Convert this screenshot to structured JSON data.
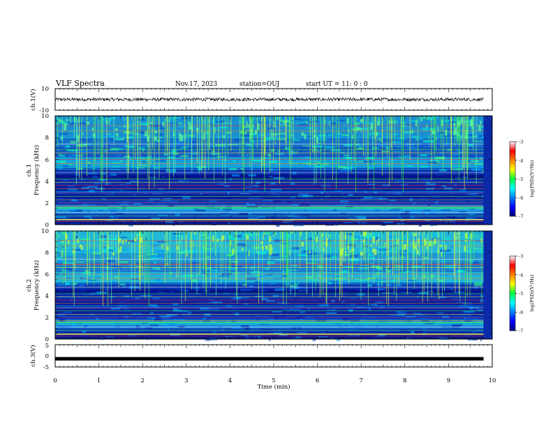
{
  "header": {
    "title": "VLF Spectra",
    "date": "Nov.17, 2023",
    "station": "station=OUJ",
    "start": "start  UT =   11: 0  : 0"
  },
  "colors": {
    "colormap": [
      "#00007a",
      "#0000ff",
      "#0080ff",
      "#00ffff",
      "#00ff40",
      "#ffff00",
      "#ff8000",
      "#ff0000",
      "#ffffff"
    ],
    "trace": "#000000"
  },
  "chart_data": [
    {
      "type": "line",
      "name": "ch1-waveform",
      "ylabel": "ch.1(V)",
      "ylim": [
        -10,
        10
      ],
      "yticks": [
        "10",
        "-10"
      ],
      "x_range_min": [
        0,
        9.8
      ],
      "level_V": 0,
      "amplitude_V": 1.5
    },
    {
      "type": "heatmap",
      "name": "ch1-spectrogram",
      "ylabel": [
        "ch.1",
        "Frequency  (kHz)"
      ],
      "ylim_kHz": [
        0,
        10
      ],
      "yticks": [
        "0",
        "2",
        "4",
        "6",
        "8",
        "10"
      ],
      "x_range_min": [
        0,
        9.8
      ],
      "colorbar": {
        "label": "log(PSD)(V²/Hz)",
        "range": [
          -7,
          -3
        ],
        "ticks": [
          "-3",
          "-4",
          "-5",
          "-6",
          "-7"
        ]
      }
    },
    {
      "type": "heatmap",
      "name": "ch2-spectrogram",
      "ylabel": [
        "ch.2",
        "Frequency  (kHz)"
      ],
      "ylim_kHz": [
        0,
        10
      ],
      "yticks": [
        "0",
        "2",
        "4",
        "6",
        "8",
        "10"
      ],
      "x_range_min": [
        0,
        9.8
      ],
      "colorbar": {
        "label": "log(PSD)(V²/Hz)",
        "range": [
          -7,
          -3
        ],
        "ticks": [
          "-3",
          "-4",
          "-5",
          "-6",
          "-7"
        ]
      }
    },
    {
      "type": "line",
      "name": "ch3-waveform",
      "ylabel": "ch.3(V)",
      "ylim": [
        -5,
        5
      ],
      "yticks": [
        "5",
        "0",
        "-5"
      ],
      "x_range_min": [
        0,
        9.8
      ],
      "level_V": -1.3
    }
  ],
  "xaxis": {
    "label": "Time  (min)",
    "ticks": [
      "0",
      "1",
      "2",
      "3",
      "4",
      "5",
      "6",
      "7",
      "8",
      "9",
      "10"
    ],
    "range": [
      0,
      10
    ]
  }
}
